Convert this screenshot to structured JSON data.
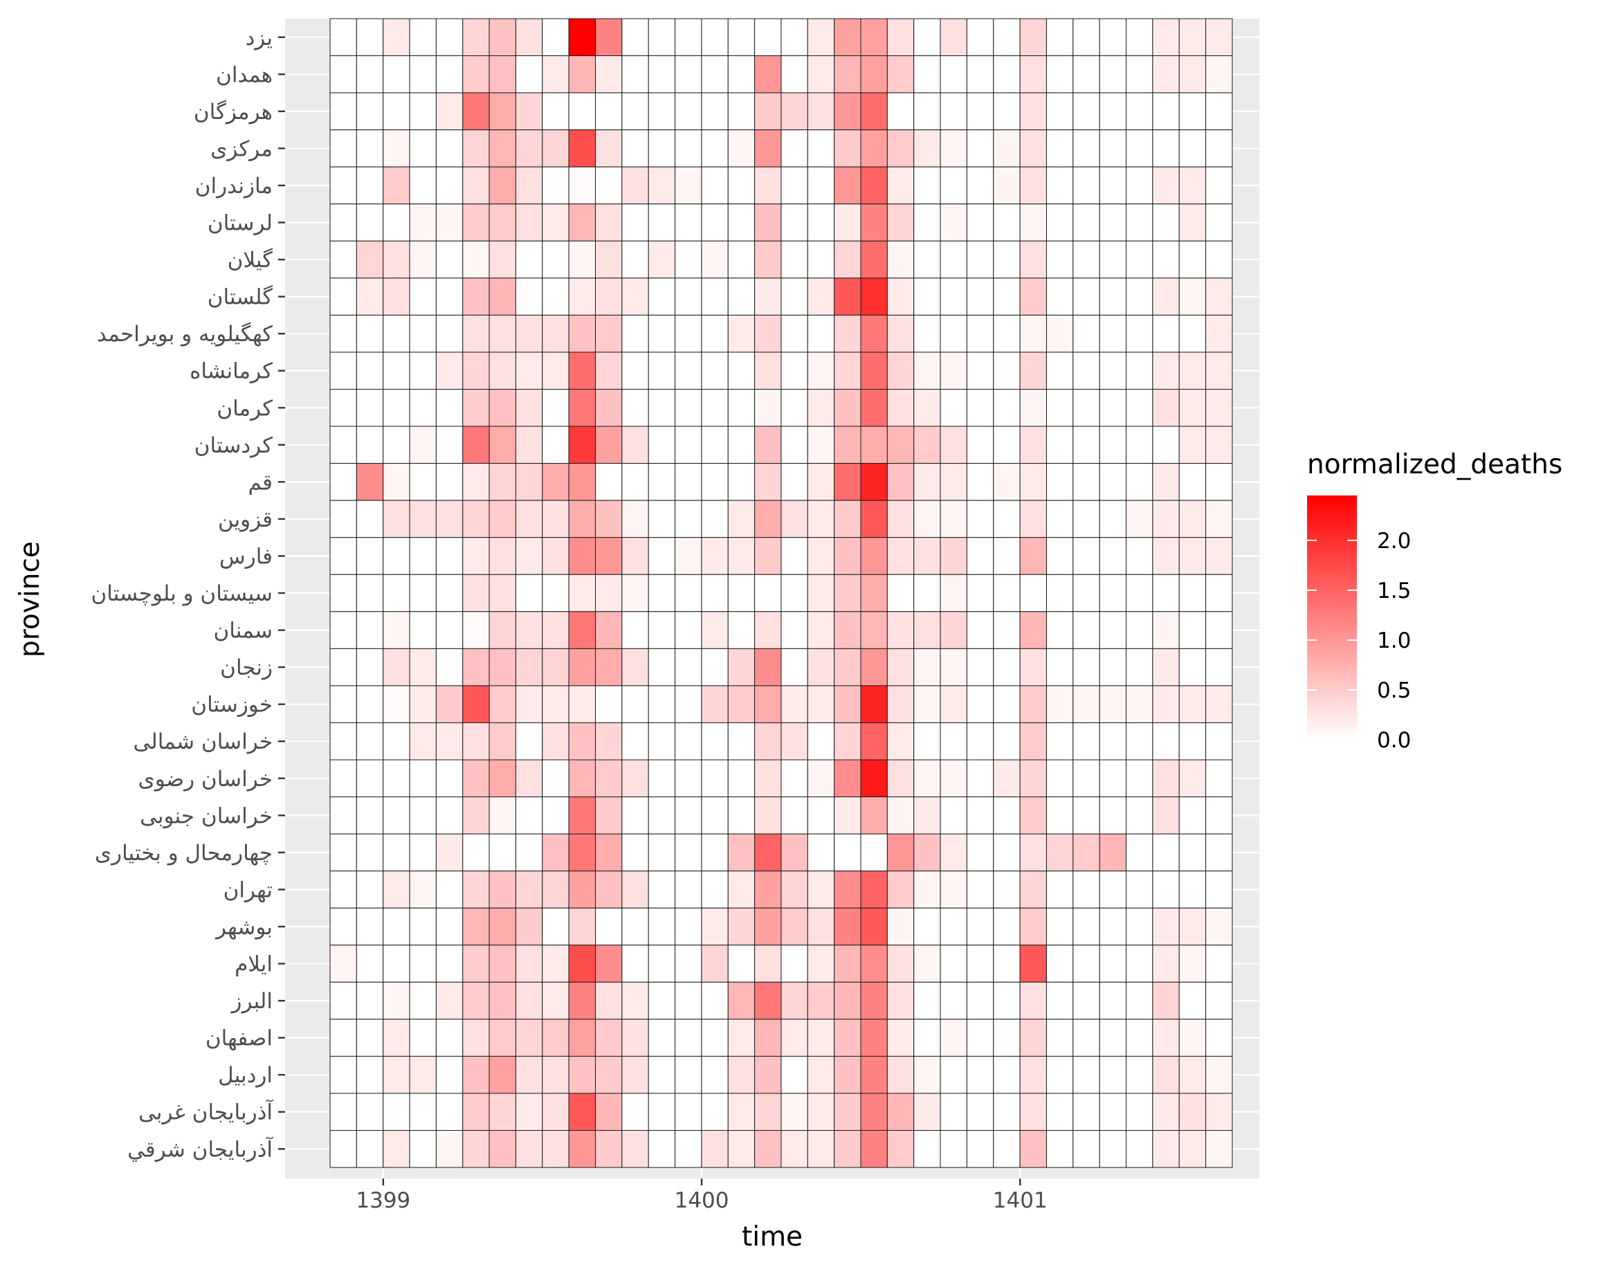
{
  "chart_data": {
    "type": "heatmap",
    "xlabel": "time",
    "ylabel": "province",
    "x_ticks": [
      "1399",
      "1400",
      "1401"
    ],
    "x_tick_values": [
      1399,
      1400,
      1401
    ],
    "x_start": 1398.833,
    "months": 34,
    "legend": {
      "title": "normalized_deaths",
      "ticks": [
        "0.0",
        "0.5",
        "1.0",
        "1.5",
        "2.0"
      ],
      "tick_values": [
        0,
        0.5,
        1.0,
        1.5,
        2.0
      ],
      "range": [
        0,
        2.45
      ],
      "low_color": "#ffffff",
      "high_color": "#ff0000",
      "placement": "right"
    },
    "provinces": [
      "یزد",
      "همدان",
      "هرمزگان",
      "مرکزی",
      "مازندران",
      "لرستان",
      "گیلان",
      "گلستان",
      "کهگیلویه و بویراحمد",
      "کرمانشاه",
      "کرمان",
      "کردستان",
      "قم",
      "قزوین",
      "فارس",
      "سیستان و بلوچستان",
      "سمنان",
      "زنجان",
      "خوزستان",
      "خراسان شمالی",
      "خراسان رضوی",
      "خراسان جنوبی",
      "چهارمحال و بختیاری",
      "تهران",
      "بوشهر",
      "ایلام",
      "البرز",
      "اصفهان",
      "اردبیل",
      "آذربایجان غربی",
      "آذربایجان شرقي"
    ],
    "values": [
      [
        0,
        0,
        0.2,
        0,
        0,
        0.4,
        0.6,
        0.3,
        0,
        2.45,
        1.2,
        0,
        0,
        0,
        0,
        0,
        0,
        0,
        0.2,
        0.9,
        0.9,
        0.3,
        0,
        0.3,
        0,
        0,
        0.4,
        0,
        0,
        0,
        0,
        0.2,
        0.2,
        0.2
      ],
      [
        0,
        0,
        0,
        0,
        0,
        0.5,
        0.6,
        0,
        0.2,
        0.7,
        0.2,
        0,
        0,
        0,
        0,
        0,
        1.0,
        0,
        0.2,
        0.7,
        0.9,
        0.5,
        0,
        0,
        0,
        0,
        0.3,
        0,
        0,
        0,
        0,
        0.2,
        0.2,
        0.1
      ],
      [
        0,
        0,
        0,
        0,
        0.2,
        1.3,
        0.8,
        0.4,
        0,
        0,
        0,
        0,
        0,
        0,
        0,
        0,
        0.5,
        0.4,
        0.3,
        1.0,
        1.4,
        0,
        0,
        0,
        0,
        0,
        0.3,
        0,
        0,
        0,
        0,
        0,
        0,
        0
      ],
      [
        0,
        0,
        0.1,
        0,
        0,
        0.4,
        0.7,
        0.4,
        0.4,
        1.7,
        0.3,
        0,
        0,
        0,
        0,
        0.1,
        1.0,
        0,
        0,
        0.5,
        0.9,
        0.5,
        0.2,
        0.1,
        0,
        0.1,
        0.3,
        0,
        0,
        0,
        0,
        0,
        0,
        0
      ],
      [
        0,
        0,
        0.5,
        0,
        0,
        0.3,
        0.8,
        0.3,
        0,
        0.05,
        0,
        0.3,
        0.2,
        0.1,
        0,
        0,
        0.3,
        0,
        0,
        1.0,
        1.5,
        0.2,
        0,
        0,
        0,
        0.1,
        0.3,
        0,
        0,
        0,
        0,
        0.2,
        0.2,
        0
      ],
      [
        0,
        0,
        0,
        0.1,
        0.1,
        0.5,
        0.5,
        0.3,
        0.2,
        0.7,
        0.3,
        0,
        0,
        0,
        0,
        0,
        0.6,
        0,
        0,
        0.2,
        1.2,
        0.4,
        0,
        0.1,
        0,
        0,
        0.1,
        0,
        0,
        0,
        0,
        0,
        0.2,
        0
      ],
      [
        0,
        0.4,
        0.3,
        0.1,
        0,
        0.1,
        0.3,
        0,
        0,
        0.1,
        0.3,
        0,
        0.2,
        0,
        0.1,
        0,
        0.5,
        0,
        0,
        0.4,
        1.4,
        0.1,
        0,
        0,
        0,
        0,
        0.3,
        0,
        0,
        0,
        0,
        0,
        0,
        0
      ],
      [
        0,
        0.2,
        0.3,
        0,
        0,
        0.6,
        0.7,
        0,
        0,
        0.2,
        0.3,
        0.2,
        0,
        0,
        0,
        0,
        0.2,
        0,
        0.2,
        1.6,
        2.0,
        0.2,
        0,
        0,
        0,
        0,
        0.5,
        0,
        0,
        0,
        0,
        0.2,
        0.1,
        0.2
      ],
      [
        0,
        0,
        0,
        0,
        0,
        0.3,
        0.3,
        0.3,
        0.3,
        0.6,
        0.5,
        0,
        0,
        0,
        0,
        0.2,
        0.4,
        0,
        0,
        0.4,
        1.3,
        0.3,
        0,
        0,
        0,
        0,
        0.1,
        0.1,
        0,
        0,
        0,
        0,
        0,
        0.2
      ],
      [
        0,
        0,
        0,
        0,
        0.2,
        0.4,
        0.3,
        0.2,
        0.2,
        1.4,
        0.4,
        0,
        0,
        0,
        0,
        0,
        0.3,
        0,
        0.1,
        0.4,
        1.4,
        0.4,
        0.1,
        0.1,
        0,
        0,
        0.4,
        0,
        0,
        0,
        0,
        0.2,
        0.2,
        0.2
      ],
      [
        0,
        0,
        0,
        0,
        0,
        0.5,
        0.6,
        0.3,
        0,
        1.3,
        0.6,
        0,
        0,
        0,
        0,
        0,
        0.1,
        0,
        0.2,
        0.6,
        1.4,
        0.3,
        0.2,
        0,
        0,
        0,
        0.1,
        0,
        0,
        0,
        0,
        0.3,
        0.2,
        0.2
      ],
      [
        0,
        0,
        0,
        0.1,
        0,
        1.3,
        0.8,
        0.3,
        0,
        1.9,
        0.9,
        0.3,
        0,
        0,
        0,
        0,
        0.6,
        0,
        0.1,
        0.7,
        0.8,
        0.7,
        0.5,
        0.3,
        0,
        0,
        0.3,
        0,
        0,
        0,
        0,
        0,
        0.2,
        0.2
      ],
      [
        0,
        1.1,
        0.1,
        0,
        0,
        0.2,
        0.4,
        0.4,
        0.8,
        1.0,
        0,
        0,
        0,
        0,
        0,
        0,
        0.4,
        0,
        0.2,
        1.4,
        2.1,
        0.6,
        0.2,
        0.2,
        0,
        0.1,
        0.2,
        0,
        0,
        0,
        0,
        0.2,
        0,
        0
      ],
      [
        0,
        0,
        0.3,
        0.3,
        0.3,
        0.4,
        0.5,
        0.3,
        0.3,
        0.8,
        0.6,
        0.1,
        0,
        0,
        0,
        0.2,
        0.8,
        0.3,
        0.2,
        0.5,
        1.6,
        0.3,
        0.1,
        0.1,
        0,
        0,
        0.3,
        0,
        0,
        0,
        0.1,
        0.2,
        0.2,
        0.1
      ],
      [
        0,
        0,
        0,
        0,
        0,
        0.2,
        0.3,
        0.2,
        0.3,
        1.1,
        1.0,
        0.3,
        0,
        0.1,
        0.2,
        0.2,
        0.5,
        0,
        0.2,
        0.6,
        1.0,
        0.3,
        0.3,
        0.4,
        0,
        0,
        0.7,
        0,
        0,
        0,
        0,
        0.2,
        0.2,
        0.2
      ],
      [
        0,
        0,
        0,
        0,
        0,
        0.3,
        0.3,
        0,
        0,
        0.2,
        0.2,
        0.1,
        0,
        0,
        0,
        0,
        0,
        0,
        0.2,
        0.5,
        0.8,
        0,
        0,
        0.1,
        0,
        0,
        0,
        0,
        0,
        0,
        0,
        0,
        0,
        0
      ],
      [
        0,
        0,
        0.1,
        0,
        0,
        0.05,
        0.4,
        0.3,
        0.3,
        1.3,
        0.7,
        0,
        0,
        0,
        0.2,
        0,
        0.3,
        0,
        0.2,
        0.6,
        0.7,
        0.3,
        0.3,
        0.4,
        0,
        0,
        0.7,
        0,
        0,
        0,
        0,
        0.1,
        0,
        0
      ],
      [
        0,
        0,
        0.3,
        0.2,
        0,
        0.6,
        0.6,
        0.4,
        0.4,
        0.9,
        0.8,
        0.3,
        0,
        0,
        0,
        0.4,
        1.1,
        0,
        0.3,
        0.5,
        1.0,
        0.3,
        0.1,
        0.1,
        0,
        0,
        0.3,
        0,
        0,
        0,
        0,
        0.2,
        0,
        0
      ],
      [
        0,
        0,
        0.05,
        0.2,
        0.5,
        1.6,
        0.5,
        0.2,
        0.2,
        0.2,
        0,
        0,
        0,
        0,
        0.4,
        0.5,
        0.8,
        0.2,
        0.2,
        0.6,
        2.1,
        0.3,
        0.1,
        0.2,
        0,
        0,
        0.5,
        0.1,
        0.1,
        0.1,
        0.1,
        0.2,
        0.2,
        0.2
      ],
      [
        0,
        0,
        0,
        0.2,
        0.2,
        0.3,
        0.5,
        0,
        0.3,
        0.6,
        0.4,
        0,
        0,
        0,
        0,
        0,
        0.4,
        0.3,
        0,
        0.4,
        1.5,
        0.2,
        0,
        0,
        0,
        0,
        0.5,
        0,
        0,
        0,
        0,
        0,
        0,
        0
      ],
      [
        0,
        0,
        0,
        0,
        0,
        0.6,
        0.8,
        0.3,
        0,
        0.7,
        0.5,
        0.3,
        0,
        0,
        0,
        0,
        0.3,
        0,
        0.1,
        1.1,
        2.2,
        0.3,
        0.1,
        0.1,
        0,
        0.2,
        0.4,
        0,
        0,
        0,
        0,
        0.3,
        0.2,
        0
      ],
      [
        0,
        0,
        0,
        0,
        0,
        0.4,
        0.1,
        0,
        0,
        1.3,
        0.5,
        0,
        0,
        0,
        0,
        0,
        0.3,
        0,
        0,
        0.2,
        0.8,
        0.1,
        0.2,
        0,
        0,
        0,
        0.5,
        0,
        0,
        0,
        0,
        0.3,
        0,
        0
      ],
      [
        0,
        0,
        0,
        0,
        0.2,
        0,
        0,
        0,
        0.6,
        1.3,
        0.8,
        0,
        0,
        0,
        0,
        0.6,
        1.5,
        0.6,
        0,
        0,
        0,
        1.0,
        0.6,
        0.2,
        0,
        0,
        0.3,
        0.4,
        0.5,
        0.7,
        0,
        0,
        0,
        0
      ],
      [
        0,
        0,
        0.2,
        0.1,
        0,
        0.4,
        0.6,
        0.4,
        0.4,
        0.9,
        0.6,
        0.3,
        0,
        0,
        0,
        0.2,
        0.9,
        0.4,
        0.2,
        1.1,
        1.5,
        0.5,
        0.1,
        0.1,
        0,
        0,
        0.4,
        0,
        0,
        0,
        0,
        0,
        0,
        0
      ],
      [
        0,
        0,
        0,
        0,
        0,
        0.7,
        0.8,
        0.5,
        0,
        0.4,
        0,
        0,
        0,
        0,
        0.2,
        0.4,
        0.9,
        0.5,
        0.3,
        1.2,
        1.6,
        0.1,
        0,
        0,
        0,
        0,
        0.5,
        0,
        0,
        0,
        0,
        0.2,
        0.2,
        0.1
      ],
      [
        0.1,
        0,
        0,
        0,
        0,
        0.5,
        0.6,
        0.3,
        0.2,
        1.7,
        1.1,
        0,
        0,
        0,
        0.4,
        0,
        0.3,
        0,
        0.2,
        0.7,
        1.1,
        0.3,
        0.1,
        0,
        0,
        0,
        1.6,
        0,
        0,
        0,
        0,
        0.2,
        0.1,
        0
      ],
      [
        0,
        0,
        0.1,
        0,
        0.2,
        0.5,
        0.6,
        0.3,
        0.2,
        1.2,
        0.3,
        0.2,
        0,
        0,
        0,
        0.7,
        1.3,
        0.4,
        0.5,
        0.7,
        1.2,
        0.3,
        0,
        0,
        0,
        0,
        0.3,
        0,
        0,
        0,
        0,
        0.4,
        0,
        0
      ],
      [
        0,
        0,
        0.2,
        0,
        0,
        0.3,
        0.5,
        0.4,
        0.5,
        0.9,
        0.5,
        0.3,
        0,
        0,
        0,
        0.2,
        0.7,
        0.2,
        0.2,
        0.6,
        1.2,
        0.2,
        0,
        0.1,
        0,
        0,
        0.4,
        0,
        0,
        0,
        0,
        0.2,
        0.1,
        0
      ],
      [
        0,
        0,
        0.2,
        0.2,
        0,
        0.6,
        0.9,
        0.3,
        0.3,
        0.6,
        0.5,
        0.3,
        0,
        0,
        0,
        0.3,
        0.6,
        0,
        0.2,
        0.6,
        1.2,
        0.3,
        0.1,
        0,
        0,
        0,
        0.3,
        0,
        0,
        0,
        0,
        0.3,
        0.2,
        0.1
      ],
      [
        0,
        0,
        0,
        0,
        0,
        0.5,
        0.4,
        0.2,
        0.3,
        1.6,
        0.7,
        0,
        0,
        0,
        0,
        0.2,
        0.4,
        0.1,
        0.2,
        0.5,
        1.2,
        0.7,
        0.2,
        0,
        0,
        0,
        0.3,
        0,
        0,
        0,
        0,
        0.2,
        0.3,
        0.2
      ],
      [
        0,
        0,
        0.2,
        0,
        0.1,
        0.4,
        0.6,
        0.3,
        0.3,
        1.0,
        0.5,
        0.3,
        0,
        0,
        0.3,
        0.2,
        0.6,
        0.2,
        0.2,
        0.5,
        1.2,
        0.5,
        0,
        0,
        0,
        0,
        0.6,
        0,
        0,
        0,
        0,
        0.2,
        0.2,
        0.1
      ]
    ]
  }
}
